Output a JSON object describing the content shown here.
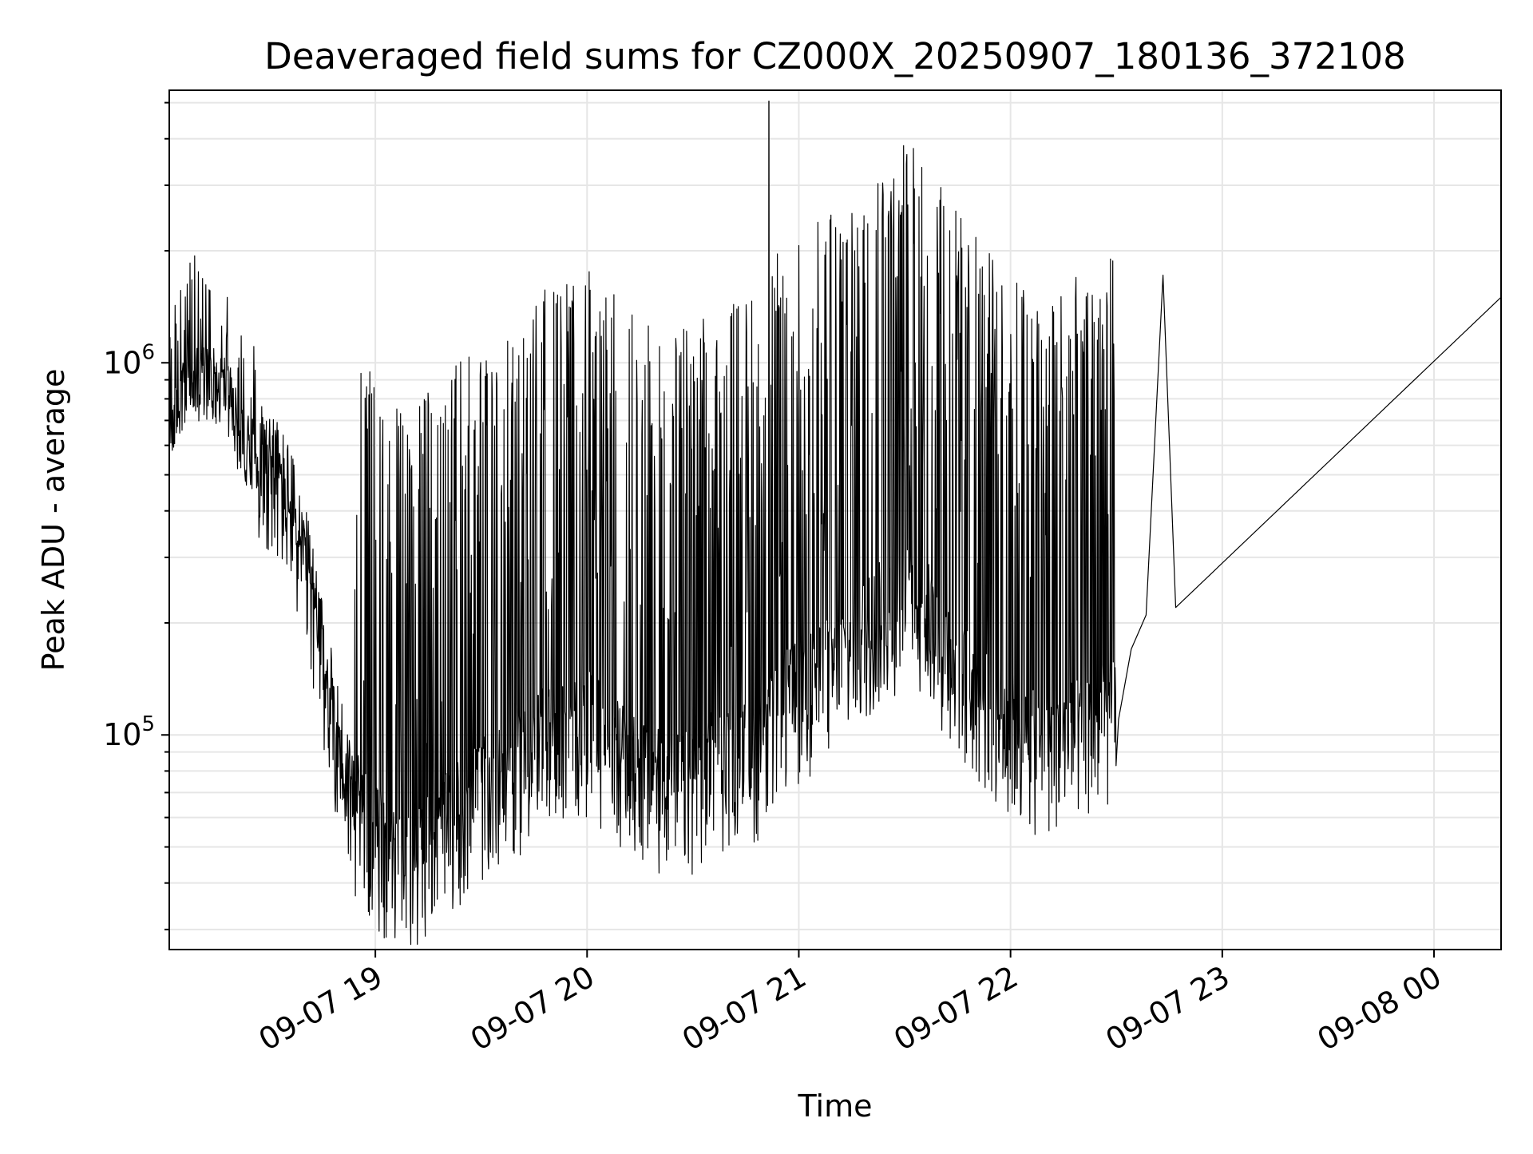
{
  "chart_data": {
    "type": "line",
    "title": "Deaveraged field sums for CZ000X_20250907_180136_372108",
    "xlabel": "Time",
    "ylabel": "Peak ADU - average",
    "yscale": "log",
    "grid": true,
    "line_color": "#000000",
    "x_ticks": [
      "09-07 19",
      "09-07 20",
      "09-07 21",
      "09-07 22",
      "09-07 23",
      "09-08 00"
    ],
    "x_tick_hours": [
      19,
      20,
      21,
      22,
      23,
      24
    ],
    "y_ticks": [
      {
        "value": 100000,
        "base": "10",
        "exp": "5"
      },
      {
        "value": 1000000,
        "base": "10",
        "exp": "6"
      }
    ],
    "xlim_hours": [
      18.0267,
      24.3167
    ],
    "ylim": [
      26500,
      5400000
    ],
    "series": [
      {
        "x_hours": [
          18.03,
          18.1,
          18.2,
          18.3,
          18.35,
          18.4,
          18.5,
          18.6,
          18.7,
          18.75,
          18.8,
          18.85,
          18.9,
          18.95,
          19.0,
          19.05,
          19.1,
          19.15,
          19.2,
          19.3,
          19.4,
          19.5,
          19.6,
          19.7,
          19.8,
          19.9,
          20.0,
          20.1,
          20.2,
          20.3,
          20.4,
          20.5,
          20.6,
          20.7,
          20.8,
          20.85,
          20.9,
          21.0,
          21.1,
          21.2,
          21.3,
          21.4,
          21.5,
          21.6,
          21.7,
          21.8,
          21.9,
          22.0,
          22.05,
          22.1,
          22.2,
          22.3,
          22.4,
          22.5,
          22.51,
          22.57,
          22.64,
          22.72,
          22.78,
          24.3167
        ],
        "y_base": [
          630000,
          800000,
          860000,
          800000,
          620000,
          560000,
          520000,
          400000,
          230000,
          150000,
          110000,
          80000,
          62000,
          55000,
          50000,
          45000,
          42000,
          42000,
          45000,
          50000,
          58000,
          65000,
          72000,
          80000,
          90000,
          95000,
          100000,
          90000,
          78000,
          70000,
          68000,
          70000,
          78000,
          82000,
          85000,
          88000,
          110000,
          120000,
          135000,
          150000,
          175000,
          200000,
          220000,
          200000,
          160000,
          130000,
          110000,
          100000,
          92000,
          88000,
          90000,
          95000,
          100000,
          110000,
          110000,
          170000,
          210000,
          1720000,
          220000,
          1500000
        ],
        "spike_min_hours": 18.9,
        "spike_max_hours": 22.5,
        "peak": {
          "x_hours": 20.8583,
          "y": 5050000
        }
      }
    ]
  }
}
